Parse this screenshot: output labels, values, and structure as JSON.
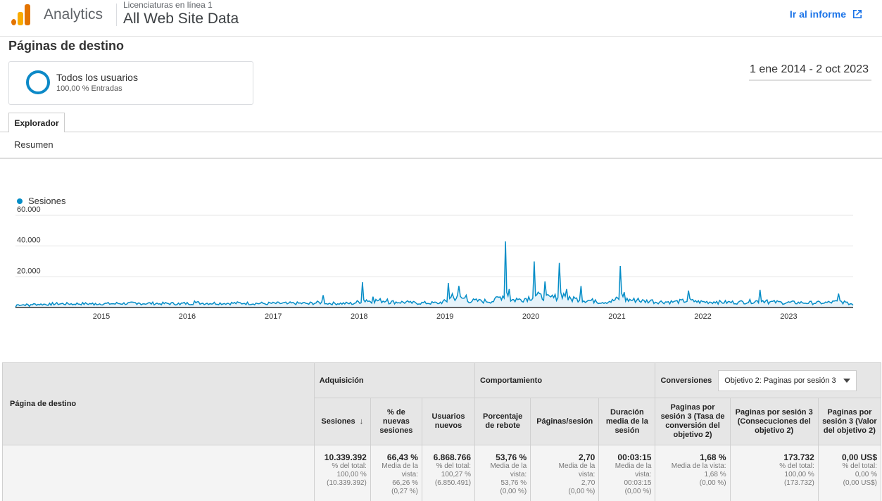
{
  "header": {
    "brand": "Analytics",
    "account": "Licenciaturas en línea 1",
    "property": "All Web Site Data",
    "goto_report": "Ir al informe"
  },
  "page_title": "Páginas de destino",
  "segment": {
    "name": "Todos los usuarios",
    "sub": "100,00 % Entradas"
  },
  "date_range": "1 ene 2014 - 2 oct 2023",
  "tabs": {
    "explorer": "Explorador",
    "summary": "Resumen"
  },
  "colors": {
    "series": "#058dc7",
    "accent": "#1a73e8"
  },
  "chart_data": {
    "type": "line",
    "series": [
      {
        "name": "Sesiones",
        "points": [
          [
            "2014-01-01",
            200
          ],
          [
            "2014-03-01",
            800
          ],
          [
            "2014-06-01",
            1500
          ],
          [
            "2014-09-01",
            1800
          ],
          [
            "2014-12-01",
            1600
          ],
          [
            "2015-03-01",
            2200
          ],
          [
            "2015-06-01",
            2000
          ],
          [
            "2015-09-01",
            2200
          ],
          [
            "2015-12-01",
            1800
          ],
          [
            "2016-02-01",
            4200
          ],
          [
            "2016-03-01",
            2500
          ],
          [
            "2016-06-01",
            2300
          ],
          [
            "2016-09-01",
            2600
          ],
          [
            "2016-12-01",
            2000
          ],
          [
            "2017-03-01",
            2400
          ],
          [
            "2017-06-01",
            2100
          ],
          [
            "2017-08-01",
            8000
          ],
          [
            "2017-08-15",
            2500
          ],
          [
            "2017-12-01",
            2000
          ],
          [
            "2018-01-15",
            16500
          ],
          [
            "2018-02-01",
            5000
          ],
          [
            "2018-03-01",
            7000
          ],
          [
            "2018-05-01",
            5500
          ],
          [
            "2018-08-01",
            3500
          ],
          [
            "2018-12-01",
            2500
          ],
          [
            "2019-01-15",
            16000
          ],
          [
            "2019-02-01",
            9000
          ],
          [
            "2019-03-01",
            14000
          ],
          [
            "2019-04-01",
            8000
          ],
          [
            "2019-06-01",
            5000
          ],
          [
            "2019-08-01",
            6000
          ],
          [
            "2019-09-15",
            43000
          ],
          [
            "2019-10-01",
            12000
          ],
          [
            "2019-11-01",
            6000
          ],
          [
            "2020-01-15",
            30000
          ],
          [
            "2020-02-01",
            10000
          ],
          [
            "2020-03-01",
            17000
          ],
          [
            "2020-04-01",
            8000
          ],
          [
            "2020-05-01",
            29000
          ],
          [
            "2020-06-01",
            12000
          ],
          [
            "2020-07-01",
            7000
          ],
          [
            "2020-08-01",
            14000
          ],
          [
            "2020-10-01",
            5000
          ],
          [
            "2020-12-01",
            4000
          ],
          [
            "2021-01-15",
            27000
          ],
          [
            "2021-02-01",
            10000
          ],
          [
            "2021-04-01",
            6000
          ],
          [
            "2021-06-01",
            5000
          ],
          [
            "2021-09-01",
            4000
          ],
          [
            "2021-11-01",
            11000
          ],
          [
            "2021-12-01",
            4500
          ],
          [
            "2022-03-01",
            4000
          ],
          [
            "2022-06-01",
            3500
          ],
          [
            "2022-09-01",
            11500
          ],
          [
            "2022-10-01",
            5000
          ],
          [
            "2022-12-01",
            3500
          ],
          [
            "2023-03-01",
            3000
          ],
          [
            "2023-06-01",
            2800
          ],
          [
            "2023-08-01",
            9000
          ],
          [
            "2023-09-01",
            3500
          ],
          [
            "2023-10-02",
            1500
          ]
        ]
      }
    ],
    "y_ticks": [
      "60.000",
      "40.000",
      "20.000"
    ],
    "x_ticks": [
      "2015",
      "2016",
      "2017",
      "2018",
      "2019",
      "2020",
      "2021",
      "2022",
      "2023"
    ],
    "ylim": [
      0,
      60000
    ],
    "legend": "top-left",
    "grid": true
  },
  "table": {
    "dimension_header": "Página de destino",
    "groups": {
      "acquisition": "Adquisición",
      "behavior": "Comportamiento",
      "conversions": "Conversiones"
    },
    "objective_select": "Objetivo 2: Paginas por sesión 3",
    "columns": [
      "Sesiones",
      "% de nuevas sesiones",
      "Usuarios nuevos",
      "Porcentaje de rebote",
      "Páginas/sesión",
      "Duración media de la sesión",
      "Paginas por sesión 3 (Tasa de conversión del objetivo 2)",
      "Paginas por sesión 3 (Consecuciones del objetivo 2)",
      "Paginas por sesión 3 (Valor del objetivo 2)"
    ],
    "totals": [
      {
        "value": "10.339.392",
        "l1": "% del total:",
        "l2": "100,00 %",
        "l3": "(10.339.392)"
      },
      {
        "value": "66,43 %",
        "l1": "Media de la",
        "l2": "vista:",
        "l3": "66,26 %",
        "l4": "(0,27 %)"
      },
      {
        "value": "6.868.766",
        "l1": "% del total:",
        "l2": "100,27 %",
        "l3": "(6.850.491)"
      },
      {
        "value": "53,76 %",
        "l1": "Media de la",
        "l2": "vista:",
        "l3": "53,76 %",
        "l4": "(0,00 %)"
      },
      {
        "value": "2,70",
        "l1": "Media de la",
        "l2": "vista:",
        "l3": "2,70",
        "l4": "(0,00 %)"
      },
      {
        "value": "00:03:15",
        "l1": "Media de la",
        "l2": "vista:",
        "l3": "00:03:15",
        "l4": "(0,00 %)"
      },
      {
        "value": "1,68 %",
        "l1": "Media de la vista:",
        "l2": "1,68 %",
        "l3": "(0,00 %)"
      },
      {
        "value": "173.732",
        "l1": "% del total:",
        "l2": "100,00 %",
        "l3": "(173.732)"
      },
      {
        "value": "0,00 US$",
        "l1": "% del total:",
        "l2": "0,00 %",
        "l3": "(0,00 US$)"
      }
    ]
  }
}
